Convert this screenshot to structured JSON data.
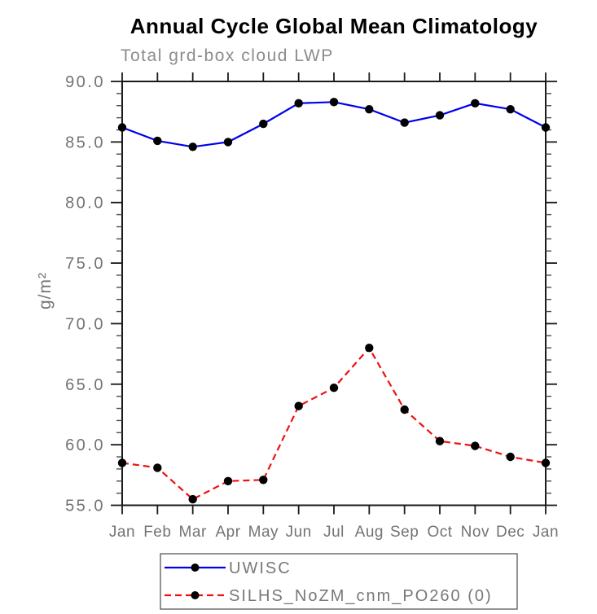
{
  "chart_data": {
    "type": "line",
    "title": "Annual Cycle Global Mean Climatology",
    "subtitle": "Total grd-box cloud LWP",
    "ylabel": "g/m²",
    "xlabel": "",
    "categories": [
      "Jan",
      "Feb",
      "Mar",
      "Apr",
      "May",
      "Jun",
      "Jul",
      "Aug",
      "Sep",
      "Oct",
      "Nov",
      "Dec",
      "Jan"
    ],
    "ylim": [
      55,
      90
    ],
    "yticks": [
      55,
      60,
      65,
      70,
      75,
      80,
      85,
      90
    ],
    "ytick_decimals": 1,
    "yminor_step": 1,
    "grid": "off",
    "legend_position": "bottom",
    "frame_color": "#1a1a1a",
    "minor_tick_color": "#4a4a4a",
    "series": [
      {
        "name": "UWISC",
        "color": "#0000ee",
        "line_style": "solid",
        "marker": "filled-circle",
        "marker_color": "#000000",
        "values": [
          86.2,
          85.1,
          84.6,
          85.0,
          86.5,
          88.2,
          88.3,
          87.7,
          86.6,
          87.2,
          88.2,
          87.7,
          86.2
        ]
      },
      {
        "name": "SILHS_NoZM_cnm_PO260 (0)",
        "color": "#ee1111",
        "line_style": "dashed",
        "marker": "filled-circle",
        "marker_color": "#000000",
        "values": [
          58.5,
          58.1,
          55.5,
          57.0,
          57.1,
          63.2,
          64.7,
          68.0,
          62.9,
          60.3,
          59.9,
          59.0,
          58.5
        ]
      }
    ]
  }
}
